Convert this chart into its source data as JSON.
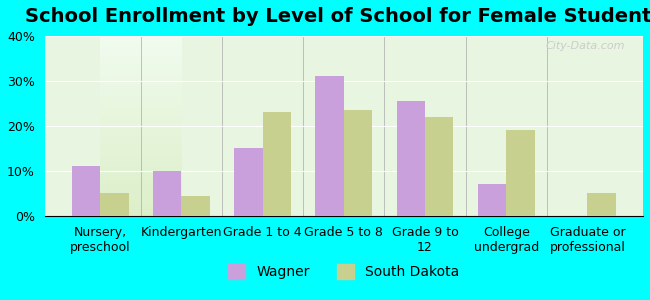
{
  "title": "School Enrollment by Level of School for Female Students",
  "categories": [
    "Nursery,\npreschool",
    "Kindergarten",
    "Grade 1 to 4",
    "Grade 5 to 8",
    "Grade 9 to\n12",
    "College\nundergrad",
    "Graduate or\nprofessional"
  ],
  "wagner_values": [
    11,
    10,
    15,
    31,
    25.5,
    7,
    0
  ],
  "south_dakota_values": [
    5,
    4.5,
    23,
    23.5,
    22,
    19,
    5
  ],
  "wagner_color": "#c9a0dc",
  "south_dakota_color": "#c8d090",
  "background_color": "#00ffff",
  "plot_bg_top": "#f0fff0",
  "plot_bg_bottom": "#e8f8e8",
  "ylim": [
    0,
    40
  ],
  "yticks": [
    0,
    10,
    20,
    30,
    40
  ],
  "ytick_labels": [
    "0%",
    "10%",
    "20%",
    "30%",
    "40%"
  ],
  "legend_wagner": "Wagner",
  "legend_sd": "South Dakota",
  "title_fontsize": 14,
  "tick_fontsize": 9,
  "legend_fontsize": 10,
  "bar_width": 0.35,
  "watermark": "City-Data.com"
}
